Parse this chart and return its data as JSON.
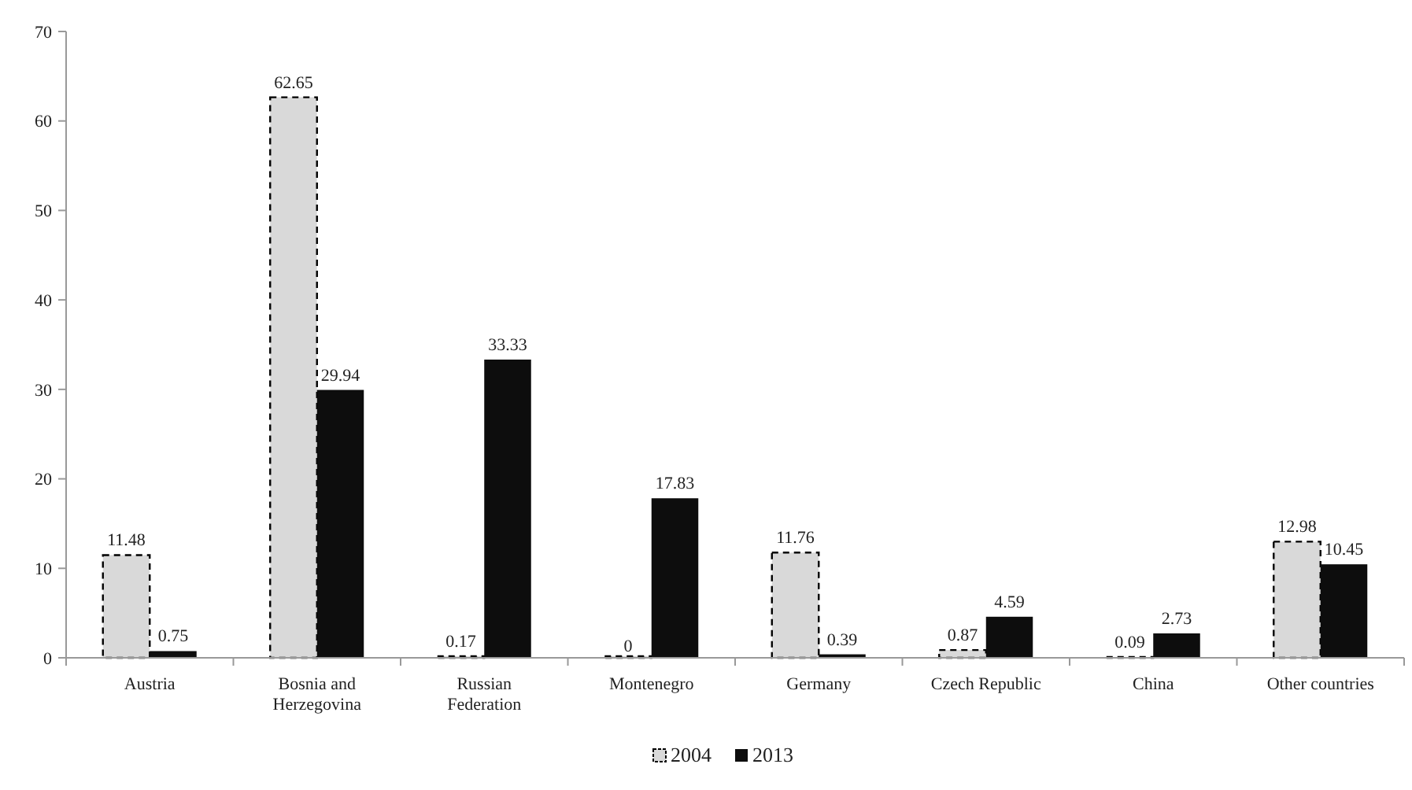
{
  "chart_data": {
    "type": "bar",
    "categories": [
      "Austria",
      "Bosnia and Herzegovina",
      "Russian Federation",
      "Montenegro",
      "Germany",
      "Czech Republic",
      "China",
      "Other countries"
    ],
    "series": [
      {
        "name": "2004",
        "color": "#d9d9d9",
        "line_style": "dashed",
        "values": [
          11.48,
          62.65,
          0.17,
          0,
          11.76,
          0.87,
          0.09,
          12.98
        ]
      },
      {
        "name": "2013",
        "color": "#0d0d0d",
        "values": [
          0.75,
          29.94,
          33.33,
          17.83,
          0.39,
          4.59,
          2.73,
          10.45
        ]
      }
    ],
    "ylim": [
      0,
      70
    ],
    "yticks": [
      0,
      10,
      20,
      30,
      40,
      50,
      60,
      70
    ],
    "data_labels": true,
    "legend": "bottom"
  }
}
